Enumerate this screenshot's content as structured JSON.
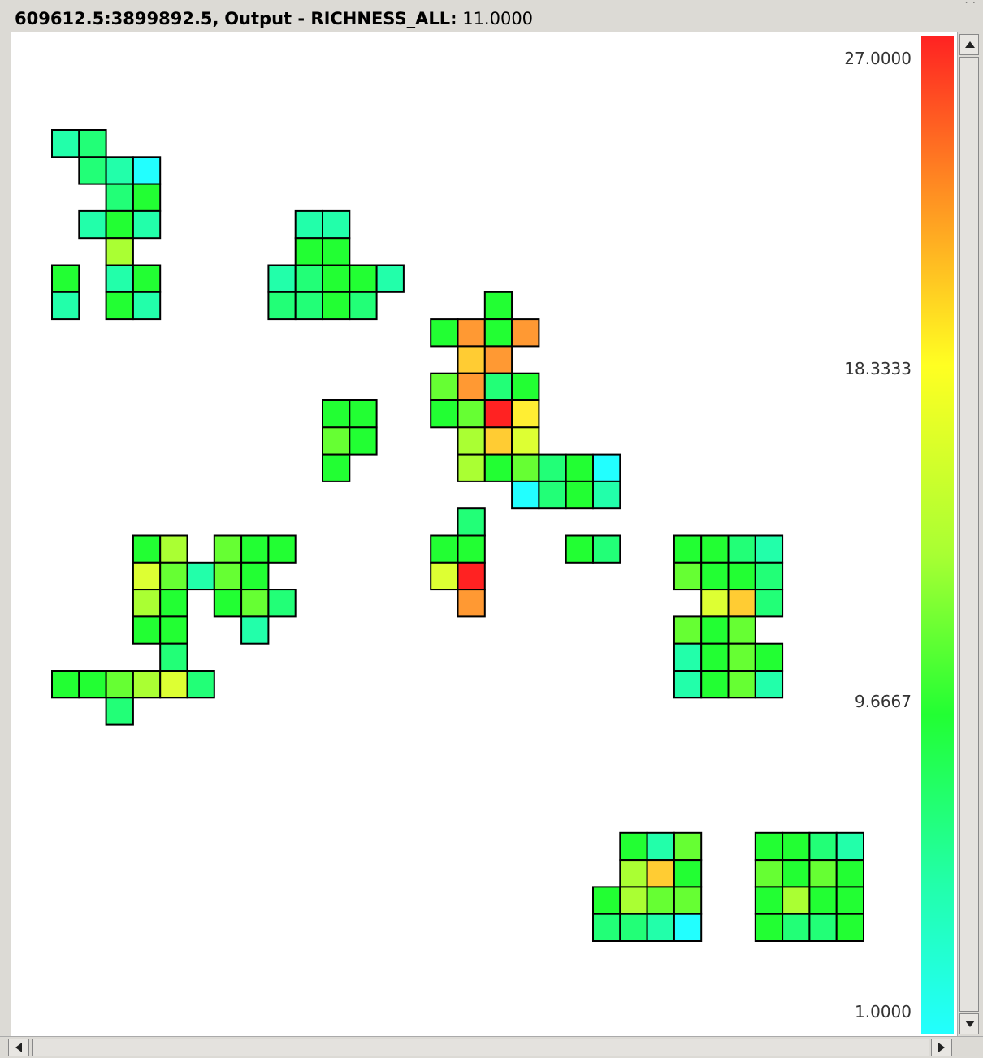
{
  "status": {
    "coords": "609612.5:3899892.5,",
    "layer": "Output - RICHNESS_ALL:",
    "value": "11.0000"
  },
  "legend": {
    "max": "27.0000",
    "mid_high": "18.3333",
    "mid_low": "9.6667",
    "min": "1.0000"
  },
  "colors": {
    "cyan": "#22ffff",
    "teal": "#22ffaa",
    "seafoam": "#22ff77",
    "green": "#22ff33",
    "lime": "#66ff33",
    "yellowgreen": "#aaff33",
    "chartreuse": "#ddff33",
    "yellow": "#ffee33",
    "gold": "#ffcc33",
    "orange": "#ff9933",
    "red": "#ff2222"
  },
  "grid": {
    "cells": [
      {
        "col": 0,
        "row": 0,
        "c": "teal"
      },
      {
        "col": 1,
        "row": 0,
        "c": "seafoam"
      },
      {
        "col": 1,
        "row": 1,
        "c": "seafoam"
      },
      {
        "col": 2,
        "row": 1,
        "c": "teal"
      },
      {
        "col": 3,
        "row": 1,
        "c": "cyan"
      },
      {
        "col": 2,
        "row": 2,
        "c": "seafoam"
      },
      {
        "col": 3,
        "row": 2,
        "c": "green"
      },
      {
        "col": 1,
        "row": 3,
        "c": "teal"
      },
      {
        "col": 2,
        "row": 3,
        "c": "green"
      },
      {
        "col": 3,
        "row": 3,
        "c": "teal"
      },
      {
        "col": 2,
        "row": 4,
        "c": "yellowgreen"
      },
      {
        "col": 0,
        "row": 5,
        "c": "green"
      },
      {
        "col": 2,
        "row": 5,
        "c": "teal"
      },
      {
        "col": 3,
        "row": 5,
        "c": "green"
      },
      {
        "col": 0,
        "row": 6,
        "c": "teal"
      },
      {
        "col": 2,
        "row": 6,
        "c": "green"
      },
      {
        "col": 3,
        "row": 6,
        "c": "teal"
      },
      {
        "col": 9,
        "row": 3,
        "c": "teal"
      },
      {
        "col": 10,
        "row": 3,
        "c": "teal"
      },
      {
        "col": 9,
        "row": 4,
        "c": "green"
      },
      {
        "col": 10,
        "row": 4,
        "c": "green"
      },
      {
        "col": 8,
        "row": 5,
        "c": "teal"
      },
      {
        "col": 9,
        "row": 5,
        "c": "seafoam"
      },
      {
        "col": 10,
        "row": 5,
        "c": "green"
      },
      {
        "col": 11,
        "row": 5,
        "c": "green"
      },
      {
        "col": 12,
        "row": 5,
        "c": "teal"
      },
      {
        "col": 8,
        "row": 6,
        "c": "seafoam"
      },
      {
        "col": 9,
        "row": 6,
        "c": "seafoam"
      },
      {
        "col": 10,
        "row": 6,
        "c": "green"
      },
      {
        "col": 11,
        "row": 6,
        "c": "seafoam"
      },
      {
        "col": 16,
        "row": 6,
        "c": "green"
      },
      {
        "col": 14,
        "row": 7,
        "c": "green"
      },
      {
        "col": 15,
        "row": 7,
        "c": "orange"
      },
      {
        "col": 16,
        "row": 7,
        "c": "green"
      },
      {
        "col": 17,
        "row": 7,
        "c": "orange"
      },
      {
        "col": 15,
        "row": 8,
        "c": "gold"
      },
      {
        "col": 16,
        "row": 8,
        "c": "orange"
      },
      {
        "col": 14,
        "row": 9,
        "c": "lime"
      },
      {
        "col": 15,
        "row": 9,
        "c": "orange"
      },
      {
        "col": 16,
        "row": 9,
        "c": "seafoam"
      },
      {
        "col": 17,
        "row": 9,
        "c": "green"
      },
      {
        "col": 14,
        "row": 10,
        "c": "green"
      },
      {
        "col": 15,
        "row": 10,
        "c": "lime"
      },
      {
        "col": 16,
        "row": 10,
        "c": "red"
      },
      {
        "col": 17,
        "row": 10,
        "c": "yellow"
      },
      {
        "col": 15,
        "row": 11,
        "c": "yellowgreen"
      },
      {
        "col": 16,
        "row": 11,
        "c": "gold"
      },
      {
        "col": 17,
        "row": 11,
        "c": "chartreuse"
      },
      {
        "col": 15,
        "row": 12,
        "c": "yellowgreen"
      },
      {
        "col": 16,
        "row": 12,
        "c": "green"
      },
      {
        "col": 17,
        "row": 12,
        "c": "lime"
      },
      {
        "col": 18,
        "row": 12,
        "c": "seafoam"
      },
      {
        "col": 19,
        "row": 12,
        "c": "green"
      },
      {
        "col": 20,
        "row": 12,
        "c": "cyan"
      },
      {
        "col": 17,
        "row": 13,
        "c": "cyan"
      },
      {
        "col": 18,
        "row": 13,
        "c": "seafoam"
      },
      {
        "col": 19,
        "row": 13,
        "c": "green"
      },
      {
        "col": 20,
        "row": 13,
        "c": "teal"
      },
      {
        "col": 10,
        "row": 10,
        "c": "green"
      },
      {
        "col": 11,
        "row": 10,
        "c": "green"
      },
      {
        "col": 10,
        "row": 11,
        "c": "lime"
      },
      {
        "col": 11,
        "row": 11,
        "c": "green"
      },
      {
        "col": 10,
        "row": 12,
        "c": "green"
      },
      {
        "col": 15,
        "row": 14,
        "c": "seafoam"
      },
      {
        "col": 14,
        "row": 15,
        "c": "green"
      },
      {
        "col": 15,
        "row": 15,
        "c": "green"
      },
      {
        "col": 14,
        "row": 16,
        "c": "chartreuse"
      },
      {
        "col": 15,
        "row": 16,
        "c": "red"
      },
      {
        "col": 15,
        "row": 17,
        "c": "orange"
      },
      {
        "col": 19,
        "row": 15,
        "c": "green"
      },
      {
        "col": 20,
        "row": 15,
        "c": "seafoam"
      },
      {
        "col": 3,
        "row": 15,
        "c": "green"
      },
      {
        "col": 4,
        "row": 15,
        "c": "yellowgreen"
      },
      {
        "col": 6,
        "row": 15,
        "c": "lime"
      },
      {
        "col": 7,
        "row": 15,
        "c": "green"
      },
      {
        "col": 8,
        "row": 15,
        "c": "green"
      },
      {
        "col": 3,
        "row": 16,
        "c": "chartreuse"
      },
      {
        "col": 4,
        "row": 16,
        "c": "lime"
      },
      {
        "col": 5,
        "row": 16,
        "c": "teal"
      },
      {
        "col": 6,
        "row": 16,
        "c": "lime"
      },
      {
        "col": 7,
        "row": 16,
        "c": "green"
      },
      {
        "col": 3,
        "row": 17,
        "c": "yellowgreen"
      },
      {
        "col": 4,
        "row": 17,
        "c": "green"
      },
      {
        "col": 6,
        "row": 17,
        "c": "green"
      },
      {
        "col": 7,
        "row": 17,
        "c": "lime"
      },
      {
        "col": 8,
        "row": 17,
        "c": "seafoam"
      },
      {
        "col": 3,
        "row": 18,
        "c": "green"
      },
      {
        "col": 4,
        "row": 18,
        "c": "green"
      },
      {
        "col": 7,
        "row": 18,
        "c": "teal"
      },
      {
        "col": 4,
        "row": 19,
        "c": "seafoam"
      },
      {
        "col": 0,
        "row": 20,
        "c": "green"
      },
      {
        "col": 1,
        "row": 20,
        "c": "green"
      },
      {
        "col": 2,
        "row": 20,
        "c": "lime"
      },
      {
        "col": 3,
        "row": 20,
        "c": "yellowgreen"
      },
      {
        "col": 4,
        "row": 20,
        "c": "chartreuse"
      },
      {
        "col": 5,
        "row": 20,
        "c": "seafoam"
      },
      {
        "col": 2,
        "row": 21,
        "c": "seafoam"
      },
      {
        "col": 23,
        "row": 15,
        "c": "green"
      },
      {
        "col": 24,
        "row": 15,
        "c": "green"
      },
      {
        "col": 25,
        "row": 15,
        "c": "seafoam"
      },
      {
        "col": 26,
        "row": 15,
        "c": "teal"
      },
      {
        "col": 23,
        "row": 16,
        "c": "lime"
      },
      {
        "col": 24,
        "row": 16,
        "c": "green"
      },
      {
        "col": 25,
        "row": 16,
        "c": "green"
      },
      {
        "col": 26,
        "row": 16,
        "c": "seafoam"
      },
      {
        "col": 24,
        "row": 17,
        "c": "chartreuse"
      },
      {
        "col": 25,
        "row": 17,
        "c": "gold"
      },
      {
        "col": 26,
        "row": 17,
        "c": "seafoam"
      },
      {
        "col": 23,
        "row": 18,
        "c": "lime"
      },
      {
        "col": 24,
        "row": 18,
        "c": "green"
      },
      {
        "col": 25,
        "row": 18,
        "c": "lime"
      },
      {
        "col": 23,
        "row": 19,
        "c": "teal"
      },
      {
        "col": 24,
        "row": 19,
        "c": "green"
      },
      {
        "col": 25,
        "row": 19,
        "c": "lime"
      },
      {
        "col": 26,
        "row": 19,
        "c": "green"
      },
      {
        "col": 23,
        "row": 20,
        "c": "teal"
      },
      {
        "col": 24,
        "row": 20,
        "c": "green"
      },
      {
        "col": 25,
        "row": 20,
        "c": "lime"
      },
      {
        "col": 26,
        "row": 20,
        "c": "teal"
      },
      {
        "col": 21,
        "row": 26,
        "c": "green"
      },
      {
        "col": 22,
        "row": 26,
        "c": "teal"
      },
      {
        "col": 23,
        "row": 26,
        "c": "lime"
      },
      {
        "col": 21,
        "row": 27,
        "c": "yellowgreen"
      },
      {
        "col": 22,
        "row": 27,
        "c": "gold"
      },
      {
        "col": 23,
        "row": 27,
        "c": "green"
      },
      {
        "col": 20,
        "row": 28,
        "c": "green"
      },
      {
        "col": 21,
        "row": 28,
        "c": "yellowgreen"
      },
      {
        "col": 22,
        "row": 28,
        "c": "lime"
      },
      {
        "col": 23,
        "row": 28,
        "c": "lime"
      },
      {
        "col": 20,
        "row": 29,
        "c": "seafoam"
      },
      {
        "col": 21,
        "row": 29,
        "c": "seafoam"
      },
      {
        "col": 22,
        "row": 29,
        "c": "teal"
      },
      {
        "col": 23,
        "row": 29,
        "c": "cyan"
      },
      {
        "col": 26,
        "row": 26,
        "c": "green"
      },
      {
        "col": 27,
        "row": 26,
        "c": "green"
      },
      {
        "col": 28,
        "row": 26,
        "c": "seafoam"
      },
      {
        "col": 29,
        "row": 26,
        "c": "teal"
      },
      {
        "col": 26,
        "row": 27,
        "c": "lime"
      },
      {
        "col": 27,
        "row": 27,
        "c": "green"
      },
      {
        "col": 28,
        "row": 27,
        "c": "lime"
      },
      {
        "col": 29,
        "row": 27,
        "c": "green"
      },
      {
        "col": 26,
        "row": 28,
        "c": "green"
      },
      {
        "col": 27,
        "row": 28,
        "c": "yellowgreen"
      },
      {
        "col": 28,
        "row": 28,
        "c": "green"
      },
      {
        "col": 29,
        "row": 28,
        "c": "green"
      },
      {
        "col": 26,
        "row": 29,
        "c": "green"
      },
      {
        "col": 27,
        "row": 29,
        "c": "seafoam"
      },
      {
        "col": 28,
        "row": 29,
        "c": "seafoam"
      },
      {
        "col": 29,
        "row": 29,
        "c": "green"
      }
    ]
  }
}
